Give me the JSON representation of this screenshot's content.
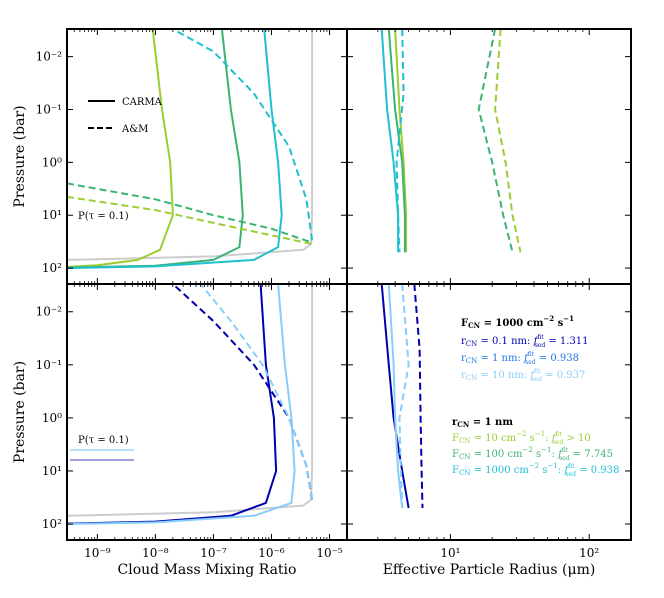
{
  "chart_data": [
    {
      "type": "line",
      "panel": "top-left",
      "xlabel": "",
      "ylabel": "Pressure (bar)",
      "xscale": "log",
      "yscale": "log",
      "yinverted": true,
      "xlim": [
        3e-10,
        2e-05
      ],
      "ylim": [
        200,
        0.003
      ],
      "xticks": [
        "10⁻⁹",
        "10⁻⁸",
        "10⁻⁷",
        "10⁻⁶",
        "10⁻⁵"
      ],
      "yticks": [
        "10⁻²",
        "10⁻¹",
        "10⁰",
        "10¹",
        "10²"
      ],
      "legend": {
        "placement": "upper-left",
        "entries": [
          {
            "label": "CARMA",
            "style": "solid"
          },
          {
            "label": "A&M",
            "style": "dashed"
          }
        ]
      },
      "annotations": [
        {
          "text": "P(τ = 0.1)"
        }
      ],
      "series": [
        {
          "color": "#cccccc",
          "style": "solid",
          "x": [
            3e-10,
            1e-09,
            1e-07,
            3.5e-06,
            4.8e-06,
            5e-06,
            5e-06
          ],
          "y": [
            70,
            68,
            60,
            45,
            35,
            10,
            0.003
          ]
        },
        {
          "color": "#9acd32",
          "style": "solid",
          "x": [
            3e-10,
            1e-09,
            5e-09,
            1.2e-08,
            2e-08,
            1.8e-08,
            1.3e-08,
            9e-09
          ],
          "y": [
            95,
            88,
            70,
            45,
            10,
            1,
            0.1,
            0.003
          ]
        },
        {
          "color": "#3cb371",
          "style": "solid",
          "x": [
            3e-10,
            1e-08,
            1e-07,
            2.8e-07,
            3.2e-07,
            2.8e-07,
            2e-07,
            1.4e-07
          ],
          "y": [
            98,
            90,
            70,
            40,
            10,
            1,
            0.1,
            0.003
          ]
        },
        {
          "color": "#20c0d0",
          "style": "solid",
          "x": [
            3e-10,
            1e-08,
            5e-07,
            1.3e-06,
            1.5e-06,
            1.3e-06,
            1e-06,
            7.5e-07
          ],
          "y": [
            100,
            93,
            70,
            40,
            10,
            1,
            0.1,
            0.003
          ]
        },
        {
          "color": "#9acd32",
          "style": "dashed",
          "x": [
            3e-10,
            1e-08,
            1e-07,
            1e-06,
            5e-06
          ],
          "y": [
            4.5,
            8,
            14,
            24,
            35
          ]
        },
        {
          "color": "#3cb371",
          "style": "dashed",
          "x": [
            3e-10,
            1e-08,
            1e-07,
            1e-06,
            5e-06
          ],
          "y": [
            2.5,
            5,
            10,
            18,
            33
          ]
        },
        {
          "color": "#20c0d0",
          "style": "dashed",
          "x": [
            5e-06,
            4e-06,
            2e-06,
            5e-07,
            1e-07,
            2e-08
          ],
          "y": [
            30,
            5,
            0.5,
            0.05,
            0.008,
            0.003
          ]
        }
      ]
    },
    {
      "type": "line",
      "panel": "top-right",
      "xlabel": "",
      "ylabel": "",
      "xscale": "log",
      "yscale": "log",
      "yinverted": true,
      "xlim": [
        1.8,
        200
      ],
      "ylim": [
        200,
        0.003
      ],
      "xticks": [
        "10¹",
        "10²"
      ],
      "series": [
        {
          "color": "#9acd32",
          "style": "solid",
          "x": [
            4.0,
            4.3,
            4.6,
            4.8,
            4.8
          ],
          "y": [
            0.003,
            0.1,
            1,
            10,
            50
          ]
        },
        {
          "color": "#3cb371",
          "style": "solid",
          "x": [
            3.6,
            4.0,
            4.5,
            4.7,
            4.7
          ],
          "y": [
            0.003,
            0.1,
            1,
            10,
            50
          ]
        },
        {
          "color": "#20c0d0",
          "style": "solid",
          "x": [
            3.2,
            3.5,
            3.9,
            4.2,
            4.2
          ],
          "y": [
            0.003,
            0.1,
            1,
            10,
            50
          ]
        },
        {
          "color": "#9acd32",
          "style": "dashed",
          "x": [
            23,
            21,
            25,
            28,
            32
          ],
          "y": [
            0.003,
            0.1,
            1,
            10,
            50
          ]
        },
        {
          "color": "#3cb371",
          "style": "dashed",
          "x": [
            21,
            16,
            20,
            24,
            28
          ],
          "y": [
            0.003,
            0.1,
            1,
            10,
            50
          ]
        },
        {
          "color": "#20c0d0",
          "style": "dashed",
          "x": [
            4.5,
            4.6,
            4.1,
            4.2,
            4.3
          ],
          "y": [
            0.003,
            0.05,
            1,
            10,
            50
          ]
        }
      ]
    },
    {
      "type": "line",
      "panel": "bottom-left",
      "xlabel": "Cloud Mass Mixing Ratio",
      "ylabel": "Pressure (bar)",
      "xscale": "log",
      "yscale": "log",
      "yinverted": true,
      "xlim": [
        3e-10,
        2e-05
      ],
      "ylim": [
        200,
        0.003
      ],
      "xticks": [
        "10⁻⁹",
        "10⁻⁸",
        "10⁻⁷",
        "10⁻⁶",
        "10⁻⁵"
      ],
      "yticks": [
        "10⁻²",
        "10⁻¹",
        "10⁰",
        "10¹",
        "10²"
      ],
      "annotations": [
        {
          "text": "P(τ = 0.1)"
        }
      ],
      "series": [
        {
          "color": "#cccccc",
          "style": "solid",
          "x": [
            3e-10,
            1e-09,
            1e-07,
            3.5e-06,
            4.8e-06,
            5e-06,
            5e-06
          ],
          "y": [
            70,
            68,
            60,
            45,
            35,
            10,
            0.003
          ]
        },
        {
          "color": "#0000b0",
          "style": "solid",
          "x": [
            3e-10,
            1e-08,
            2e-07,
            8e-07,
            1.2e-06,
            1.1e-06,
            8e-07,
            6.5e-07
          ],
          "y": [
            98,
            90,
            70,
            40,
            10,
            1,
            0.1,
            0.003
          ]
        },
        {
          "color": "#87cefa",
          "style": "solid",
          "x": [
            3e-10,
            1e-08,
            5e-07,
            2.2e-06,
            2.5e-06,
            2.2e-06,
            1.7e-06,
            1.3e-06
          ],
          "y": [
            100,
            93,
            70,
            40,
            10,
            1,
            0.1,
            0.003
          ]
        },
        {
          "color": "#0000b0",
          "style": "dashed",
          "x": [
            5e-06,
            4e-06,
            2e-06,
            5e-07,
            1e-07,
            2e-08
          ],
          "y": [
            35,
            8,
            1,
            0.1,
            0.015,
            0.003
          ]
        },
        {
          "color": "#87cefa",
          "style": "dashed",
          "x": [
            5e-06,
            4e-06,
            2e-06,
            7e-07,
            2e-07,
            6e-08
          ],
          "y": [
            35,
            8,
            1,
            0.1,
            0.015,
            0.003
          ]
        }
      ]
    },
    {
      "type": "line",
      "panel": "bottom-right",
      "xlabel": "Effective Particle Radius (μm)",
      "ylabel": "",
      "xscale": "log",
      "yscale": "log",
      "yinverted": true,
      "xlim": [
        1.8,
        200
      ],
      "ylim": [
        200,
        0.003
      ],
      "xticks": [
        "10¹",
        "10²"
      ],
      "series": [
        {
          "color": "#0000b0",
          "style": "solid",
          "x": [
            3.2,
            3.6,
            3.9,
            4.5,
            5.0
          ],
          "y": [
            0.003,
            0.1,
            1,
            10,
            50
          ]
        },
        {
          "color": "#87cefa",
          "style": "solid",
          "x": [
            3.6,
            3.9,
            4.0,
            4.2,
            4.5
          ],
          "y": [
            0.003,
            0.1,
            1,
            10,
            50
          ]
        },
        {
          "color": "#0000b0",
          "style": "dashed",
          "x": [
            5.5,
            6.0,
            6.1,
            6.2,
            6.3
          ],
          "y": [
            0.003,
            0.05,
            1,
            10,
            50
          ]
        },
        {
          "color": "#87cefa",
          "style": "dashed",
          "x": [
            4.5,
            5.0,
            4.3,
            4.4,
            4.5
          ],
          "y": [
            0.003,
            0.1,
            1,
            10,
            50
          ]
        }
      ]
    }
  ],
  "annotations_text": {
    "fcn_title": "F",
    "fcn_title_sub": "CN",
    "fcn_title_rest": " = 1000 cm",
    "fcn_title_exp": "−2",
    "fcn_title_end": " s",
    "fcn_title_end_exp": "−1",
    "r1_pre": "r",
    "r1_sub": "CN",
    "r1_mid": " = 0.1 nm: ",
    "r1_f": "f",
    "r1_fsup": "fit",
    "r1_fsub": "sed",
    "r1_val": " = 1.311",
    "r2_pre": "r",
    "r2_sub": "CN",
    "r2_mid": " = 1 nm: ",
    "r2_f": "f",
    "r2_fsup": "fit",
    "r2_fsub": "sed",
    "r2_val": " = 0.938",
    "r3_pre": "r",
    "r3_sub": "CN",
    "r3_mid": " = 10 nm: ",
    "r3_f": "f",
    "r3_fsup": "fit",
    "r3_fsub": "sed",
    "r3_val": " = 0.937",
    "rcn_title": "r",
    "rcn_title_sub": "CN",
    "rcn_title_rest": " = 1 nm",
    "f1_pre": "F",
    "f1_sub": "CN",
    "f1_mid": " = 10 cm",
    "f1_exp1": "−2",
    "f1_s": " s",
    "f1_exp2": "−1",
    "f1_colon": ": ",
    "f1_f": "f",
    "f1_fsup": "fit",
    "f1_fsub": "sed",
    "f1_val": " > 10",
    "f2_pre": "F",
    "f2_sub": "CN",
    "f2_mid": " = 100 cm",
    "f2_exp1": "−2",
    "f2_s": " s",
    "f2_exp2": "−1",
    "f2_colon": ": ",
    "f2_f": "f",
    "f2_fsup": "fit",
    "f2_fsub": "sed",
    "f2_val": " = 7.745",
    "f3_pre": "F",
    "f3_sub": "CN",
    "f3_mid": " = 1000 cm",
    "f3_exp1": "−2",
    "f3_s": " s",
    "f3_exp2": "−1",
    "f3_colon": ": ",
    "f3_f": "f",
    "f3_fsup": "fit",
    "f3_fsub": "sed",
    "f3_val": " = 0.938"
  },
  "colors": {
    "grey": "#cccccc",
    "yellowgreen": "#9acd32",
    "mediumseagreen": "#3cb371",
    "turquoise": "#20c0d0",
    "darkblue": "#0000b0",
    "midblue": "#1e78e6",
    "lightskyblue": "#87cefa"
  }
}
